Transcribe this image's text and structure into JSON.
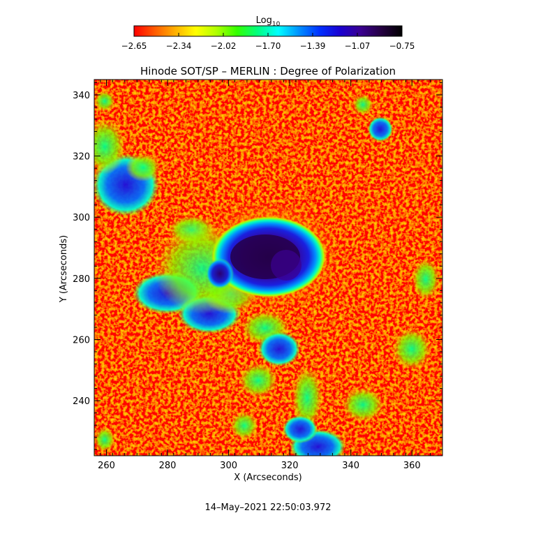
{
  "title": "Hinode SOT/SP – MERLIN : Degree of Polarization",
  "colorbar": {
    "label": "Log",
    "label_subscript": "10",
    "ticks": [
      "−2.65",
      "−2.34",
      "−2.02",
      "−1.70",
      "−1.39",
      "−1.07",
      "−0.75"
    ],
    "colormap": [
      "#ff0000",
      "#ff5a00",
      "#ffb000",
      "#ffff00",
      "#b0ff00",
      "#33ff00",
      "#00ff80",
      "#00ffff",
      "#0090ff",
      "#0030ff",
      "#1a00d0",
      "#3a0090",
      "#240040",
      "#000000"
    ]
  },
  "xaxis": {
    "label": "X (Arcseconds)",
    "ticks": [
      "260",
      "280",
      "300",
      "320",
      "340",
      "360"
    ]
  },
  "yaxis": {
    "label": "Y (Arcseconds)",
    "ticks": [
      "240",
      "260",
      "280",
      "300",
      "320",
      "340"
    ]
  },
  "timestamp": "14–May–2021 22:50:03.972"
}
